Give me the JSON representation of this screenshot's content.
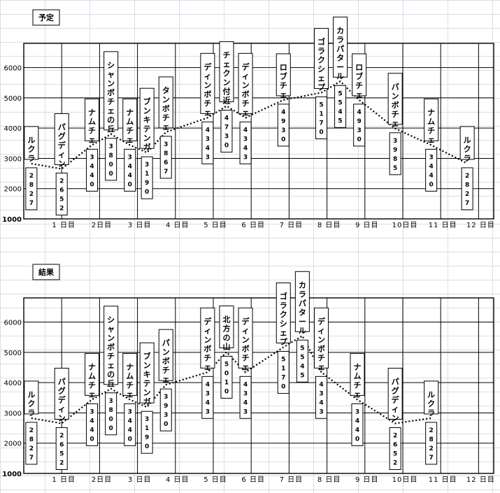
{
  "chart_data": [
    {
      "type": "line",
      "title": "予定",
      "ylim": [
        1000,
        6800
      ],
      "yticks": [
        "1000",
        "2000",
        "3000",
        "4000",
        "5000",
        "6000"
      ],
      "xticks": [
        "1 日目",
        "2日目",
        "3 日目",
        "4 日目",
        "5 日目",
        "6 日目",
        "7 日目",
        "8 日目",
        "9 日目",
        "10日目",
        "11 日目",
        "12 日目"
      ],
      "grid": true,
      "points": [
        {
          "x": 0.2,
          "y": 2827,
          "name": "ルクラ",
          "value": "2827",
          "side": "over"
        },
        {
          "x": 1.0,
          "y": 2652,
          "name": "パグディン",
          "value": "2652",
          "side": "over"
        },
        {
          "x": 1.8,
          "y": 3440,
          "name": "ナムチェ",
          "value": "3440",
          "side": "over"
        },
        {
          "x": 2.3,
          "y": 3800,
          "name": "シャンボチェの丘",
          "value": "3800",
          "side": "over"
        },
        {
          "x": 2.8,
          "y": 3440,
          "name": "ナムチェ",
          "value": "3440",
          "side": "over"
        },
        {
          "x": 3.25,
          "y": 3190,
          "name": "ブンキテンガ",
          "value": "3190",
          "side": "over"
        },
        {
          "x": 3.75,
          "y": 3867,
          "name": "タンボチェ",
          "value": "3867",
          "side": "over"
        },
        {
          "x": 4.85,
          "y": 4343,
          "name": "ディンボチェ",
          "value": "4343",
          "side": "over"
        },
        {
          "x": 5.35,
          "y": 4730,
          "name": "チェクン付近",
          "value": "4730",
          "side": "over"
        },
        {
          "x": 5.85,
          "y": 4343,
          "name": "ディンボチェ",
          "value": "4343",
          "side": "over"
        },
        {
          "x": 6.85,
          "y": 4930,
          "name": "ロブチェ",
          "value": "4930",
          "side": "over"
        },
        {
          "x": 7.85,
          "y": 5170,
          "name": "ゴラクシェプ",
          "value": "5170",
          "side": "over"
        },
        {
          "x": 8.35,
          "y": 5545,
          "name": "カラパタール",
          "value": "5545",
          "side": "over"
        },
        {
          "x": 8.85,
          "y": 4930,
          "name": "ロブチェ",
          "value": "4930",
          "side": "over"
        },
        {
          "x": 9.8,
          "y": 3985,
          "name": "パンボチェ",
          "value": "3985",
          "side": "over"
        },
        {
          "x": 10.75,
          "y": 3440,
          "name": "ナムチェ",
          "value": "3440",
          "side": "over"
        },
        {
          "x": 11.7,
          "y": 2827,
          "name": "ルクラ",
          "value": "2827",
          "side": "over"
        }
      ]
    },
    {
      "type": "line",
      "title": "結果",
      "ylim": [
        1000,
        6800
      ],
      "yticks": [
        "1000",
        "2000",
        "3000",
        "4000",
        "5000",
        "6000"
      ],
      "xticks": [
        "1 日目",
        "2日目",
        "3 日目",
        "4 日目",
        "5 日目",
        "6 日目",
        "7 日目",
        "8 日目",
        "9 日目",
        "10日目",
        "11 日目",
        "12 日目"
      ],
      "grid": true,
      "points": [
        {
          "x": 0.2,
          "y": 2827,
          "name": "ルクラ",
          "value": "2827",
          "side": "over"
        },
        {
          "x": 1.0,
          "y": 2652,
          "name": "パグディン",
          "value": "2652",
          "side": "over"
        },
        {
          "x": 1.8,
          "y": 3440,
          "name": "ナムチェ",
          "value": "3440",
          "side": "over"
        },
        {
          "x": 2.3,
          "y": 3800,
          "name": "シャンボチェの丘",
          "value": "3800",
          "side": "over"
        },
        {
          "x": 2.8,
          "y": 3440,
          "name": "ナムチェ",
          "value": "3440",
          "side": "over"
        },
        {
          "x": 3.25,
          "y": 3190,
          "name": "ブンキテンガ",
          "value": "3190",
          "side": "over"
        },
        {
          "x": 3.75,
          "y": 3930,
          "name": "パンボチェ",
          "value": "3930",
          "side": "under"
        },
        {
          "x": 4.85,
          "y": 4343,
          "name": "ディンボチェ",
          "value": "4343",
          "side": "over"
        },
        {
          "x": 5.35,
          "y": 5010,
          "name": "北方の山",
          "value": "5010",
          "side": "over"
        },
        {
          "x": 5.85,
          "y": 4343,
          "name": "ディンボチェ",
          "value": "4343",
          "side": "over"
        },
        {
          "x": 6.85,
          "y": 5170,
          "name": "ゴラクシェプ",
          "value": "5170",
          "side": "over"
        },
        {
          "x": 7.35,
          "y": 5545,
          "name": "カラパタール",
          "value": "5545",
          "side": "over"
        },
        {
          "x": 7.85,
          "y": 4343,
          "name": "ディンボチェ",
          "value": "4343",
          "side": "over"
        },
        {
          "x": 8.8,
          "y": 3440,
          "name": "ナムチェ",
          "value": "3440",
          "side": "over"
        },
        {
          "x": 9.8,
          "y": 2652,
          "name": "パグディン",
          "value": "2652",
          "side": "over"
        },
        {
          "x": 10.75,
          "y": 2827,
          "name": "ルクラ",
          "value": "2827",
          "side": "over"
        }
      ]
    }
  ]
}
